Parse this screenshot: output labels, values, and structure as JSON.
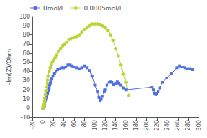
{
  "chart_data": {
    "type": "line",
    "ylabel": "-Im(Z)/Ohm",
    "xlim": [
      -20,
      300
    ],
    "ylim": [
      -10,
      100
    ],
    "xticks": [
      -20,
      0,
      20,
      40,
      60,
      80,
      100,
      120,
      140,
      160,
      180,
      200,
      220,
      240,
      260,
      280,
      300
    ],
    "yticks": [
      -10,
      0,
      10,
      20,
      30,
      40,
      50,
      60,
      70,
      80,
      90,
      100
    ],
    "grid": false,
    "legend": "upper left",
    "series": [
      {
        "name": "0mol/L",
        "marker": "square",
        "x": [
          0.5,
          1,
          1.5,
          2,
          2.5,
          3,
          3.5,
          4,
          4.5,
          5,
          5.5,
          6,
          6.5,
          7,
          7.5,
          8,
          9,
          10,
          11,
          12,
          13,
          14,
          15,
          17,
          19,
          22,
          25,
          28,
          32,
          36,
          40,
          44,
          48,
          52,
          56,
          60,
          65,
          70,
          75,
          80,
          85,
          90,
          95,
          100,
          105,
          108,
          110,
          112,
          115,
          118,
          120,
          123,
          127,
          130,
          133,
          136,
          140,
          143,
          146,
          150,
          155,
          160,
          210,
          213,
          215,
          217,
          219,
          222,
          225,
          230,
          238,
          248,
          258,
          263,
          268,
          273,
          278,
          283,
          288
        ],
        "values": [
          0,
          1,
          2,
          3,
          4,
          5,
          6,
          7,
          8,
          9,
          10,
          11,
          12,
          13,
          14,
          15,
          16,
          18,
          20,
          22,
          25,
          27,
          29,
          32,
          35,
          38,
          40,
          42,
          43,
          44,
          44,
          45,
          47,
          47,
          46,
          45,
          44,
          43,
          44,
          46,
          44,
          41,
          35,
          25,
          18,
          12,
          8,
          10,
          13,
          18,
          20,
          25,
          28,
          29,
          28,
          26,
          27,
          29,
          27,
          25,
          22,
          20,
          23,
          20,
          16,
          15,
          16,
          18,
          22,
          28,
          33,
          38,
          44,
          46,
          45,
          44,
          43,
          43,
          42
        ]
      },
      {
        "name": "0.0005mol/L",
        "marker": "circle",
        "x": [
          0.5,
          1,
          1.5,
          2,
          3,
          4,
          5,
          6,
          7,
          8,
          9,
          10,
          12,
          14,
          16,
          18,
          20,
          23,
          26,
          30,
          34,
          38,
          42,
          46,
          50,
          55,
          60,
          65,
          70,
          75,
          80,
          85,
          90,
          95,
          100,
          105,
          110,
          115,
          120,
          125,
          130,
          135,
          140,
          145,
          150,
          155,
          160,
          165
        ],
        "values": [
          0,
          1,
          3,
          5,
          8,
          11,
          15,
          19,
          23,
          27,
          31,
          35,
          40,
          44,
          47,
          50,
          52,
          55,
          58,
          62,
          65,
          68,
          70,
          72,
          75,
          76,
          77,
          78,
          80,
          83,
          86,
          88,
          90,
          92,
          92,
          92,
          91,
          90,
          88,
          85,
          80,
          74,
          65,
          57,
          47,
          37,
          28,
          14
        ]
      }
    ]
  }
}
